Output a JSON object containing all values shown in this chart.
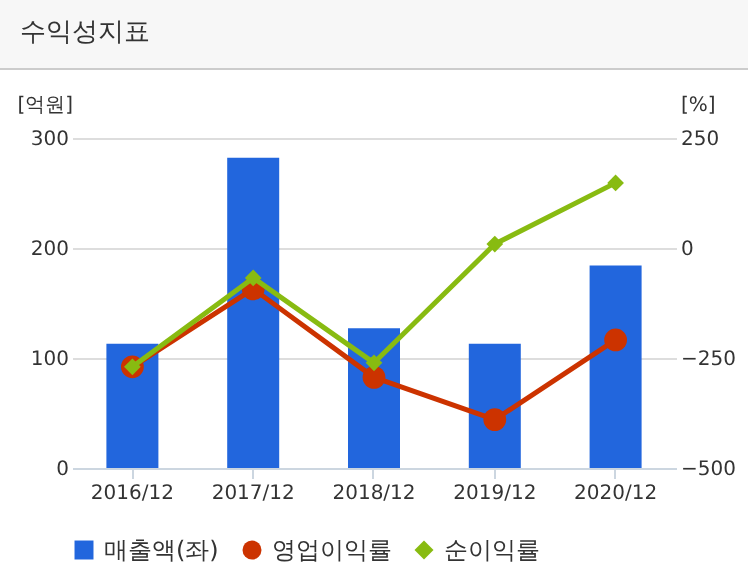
{
  "chart_data": {
    "type": "bar",
    "title": "수익성지표",
    "ylabel": "[억원]",
    "y2label": "[%]",
    "categories": [
      "2016/12",
      "2017/12",
      "2018/12",
      "2019/12",
      "2020/12"
    ],
    "series": [
      {
        "name": "매출액(좌)",
        "color": "#2266dd",
        "values": [
          113,
          282,
          127,
          113,
          184
        ]
      },
      {
        "name": "영업이익률",
        "type": "line",
        "axis": "y2",
        "color": "#cc3300",
        "marker": "circle",
        "values": [
          -270,
          -93,
          -294,
          -390,
          -209
        ]
      },
      {
        "name": "순이익률",
        "type": "line",
        "axis": "y2",
        "color": "#88bb11",
        "marker": "diamond",
        "values": [
          -270,
          -68,
          -261,
          9,
          148
        ]
      }
    ],
    "ylim": [
      0,
      300
    ],
    "yticks": [
      0,
      100,
      200,
      300
    ],
    "y2lim": [
      -500,
      250
    ],
    "y2ticks": [
      -500,
      -250,
      0,
      250
    ],
    "grid": "y",
    "legend": "bottom"
  }
}
